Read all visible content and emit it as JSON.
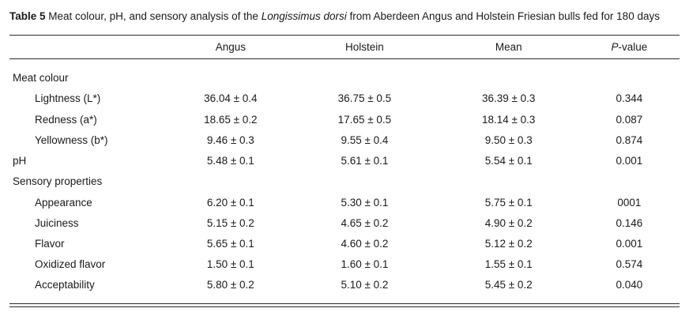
{
  "caption": {
    "label": "Table 5",
    "before_italic": " Meat colour, pH, and sensory analysis of the ",
    "italic": "Longissimus dorsi",
    "after_italic": " from Aberdeen Angus and Holstein Friesian bulls fed for 180 days"
  },
  "table": {
    "label_column_header": "",
    "headers": [
      "Angus",
      "Holstein",
      "Mean"
    ],
    "p_header": {
      "italic": "P",
      "rest": "-value"
    },
    "rows": [
      {
        "label": "Meat colour",
        "section": true,
        "indent": false,
        "cells": [
          "",
          "",
          "",
          ""
        ]
      },
      {
        "label": "Lightness (L*)",
        "section": false,
        "indent": true,
        "cells": [
          "36.04 ± 0.4",
          "36.75 ± 0.5",
          "36.39 ± 0.3",
          "0.344"
        ]
      },
      {
        "label": "Redness (a*)",
        "section": false,
        "indent": true,
        "cells": [
          "18.65 ± 0.2",
          "17.65 ± 0.5",
          "18.14 ± 0.3",
          "0.087"
        ]
      },
      {
        "label": "Yellowness (b*)",
        "section": false,
        "indent": true,
        "cells": [
          "9.46 ± 0.3",
          "9.55 ± 0.4",
          "9.50 ± 0.3",
          "0.874"
        ]
      },
      {
        "label": "pH",
        "section": false,
        "indent": false,
        "cells": [
          "5.48 ± 0.1",
          "5.61 ± 0.1",
          "5.54 ± 0.1",
          "0.001"
        ]
      },
      {
        "label": "Sensory properties",
        "section": true,
        "indent": false,
        "cells": [
          "",
          "",
          "",
          ""
        ]
      },
      {
        "label": "Appearance",
        "section": false,
        "indent": true,
        "cells": [
          "6.20 ± 0.1",
          "5.30 ± 0.1",
          "5.75 ± 0.1",
          "0001"
        ]
      },
      {
        "label": "Juiciness",
        "section": false,
        "indent": true,
        "cells": [
          "5.15 ± 0.2",
          "4.65 ± 0.2",
          "4.90 ± 0.2",
          "0.146"
        ]
      },
      {
        "label": "Flavor",
        "section": false,
        "indent": true,
        "cells": [
          "5.65 ± 0.1",
          "4.60 ± 0.2",
          "5.12 ± 0.2",
          "0.001"
        ]
      },
      {
        "label": "Oxidized flavor",
        "section": false,
        "indent": true,
        "cells": [
          "1.50 ± 0.1",
          "1.60 ± 0.1",
          "1.55 ± 0.1",
          "0.574"
        ]
      },
      {
        "label": "Acceptability",
        "section": false,
        "indent": true,
        "cells": [
          "5.80 ± 0.2",
          "5.10 ± 0.2",
          "5.45 ± 0.2",
          "0.040"
        ]
      }
    ]
  }
}
